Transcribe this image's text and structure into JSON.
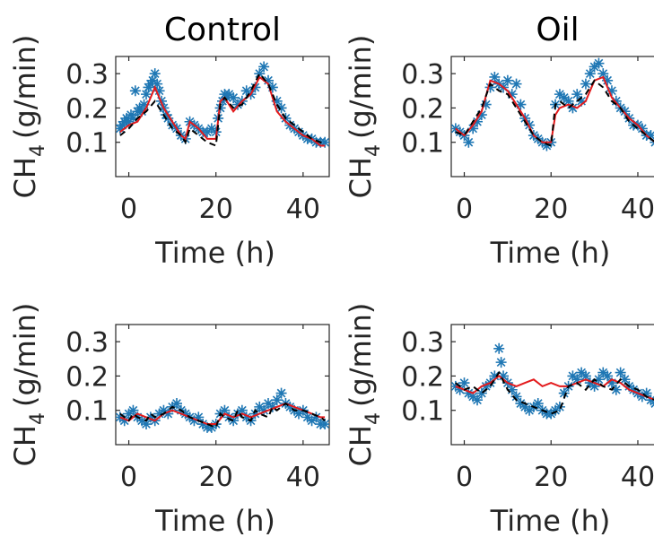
{
  "figure": {
    "titles": [
      "Control",
      "Oil"
    ],
    "colors": {
      "observed": "#1f77b4",
      "model_red": "#e31a1c",
      "model_black": "#000000",
      "axis": "#262626"
    }
  },
  "chart_data": [
    {
      "type": "line",
      "panel": "top-left",
      "title": "Control",
      "xlabel": "Time (h)",
      "ylabel": "CH4 (g/min)",
      "ylabel_main": "CH",
      "ylabel_sub": "4",
      "ylabel_unit": "(g/min)",
      "xlim": [
        -3,
        46
      ],
      "ylim": [
        0,
        0.35
      ],
      "xticks": [
        0,
        20,
        40
      ],
      "yticks": [
        0.1,
        0.2,
        0.3
      ],
      "xtick_labels": [
        "0",
        "20",
        "40"
      ],
      "ytick_labels": [
        "0.1",
        "0.2",
        "0.3"
      ],
      "series": [
        {
          "style": "star",
          "color": "#1f77b4",
          "x": [
            -2,
            -1.5,
            -1,
            -0.5,
            0,
            0.5,
            1,
            1.5,
            2,
            2.5,
            3,
            3.5,
            4,
            4.5,
            5,
            5.5,
            6,
            6.5,
            7,
            7.5,
            8,
            8.5,
            9,
            10,
            11,
            12,
            13,
            14,
            15,
            16,
            17,
            18,
            19,
            20,
            20.5,
            21,
            21.5,
            22,
            22.5,
            23,
            24,
            25,
            26,
            27,
            28,
            29,
            30,
            31,
            32,
            33,
            34,
            35,
            36,
            37,
            38,
            39,
            40,
            41,
            42,
            43,
            44,
            45
          ],
          "y": [
            0.14,
            0.15,
            0.16,
            0.17,
            0.16,
            0.18,
            0.17,
            0.25,
            0.19,
            0.2,
            0.19,
            0.21,
            0.24,
            0.26,
            0.27,
            0.28,
            0.3,
            0.27,
            0.25,
            0.22,
            0.2,
            0.18,
            0.17,
            0.15,
            0.14,
            0.12,
            0.11,
            0.16,
            0.15,
            0.14,
            0.13,
            0.13,
            0.14,
            0.13,
            0.17,
            0.2,
            0.22,
            0.24,
            0.23,
            0.24,
            0.23,
            0.21,
            0.22,
            0.25,
            0.24,
            0.26,
            0.3,
            0.32,
            0.28,
            0.26,
            0.22,
            0.2,
            0.17,
            0.15,
            0.14,
            0.13,
            0.12,
            0.11,
            0.11,
            0.1,
            0.1,
            0.1
          ]
        },
        {
          "style": "solid",
          "color": "#e31a1c",
          "x": [
            -2,
            0,
            2,
            4,
            6,
            8,
            10,
            12,
            13,
            14,
            16,
            18,
            20,
            21,
            22,
            24,
            26,
            28,
            30,
            32,
            34,
            36,
            38,
            40,
            42,
            44,
            45
          ],
          "y": [
            0.13,
            0.15,
            0.16,
            0.2,
            0.26,
            0.2,
            0.16,
            0.12,
            0.11,
            0.16,
            0.14,
            0.11,
            0.11,
            0.22,
            0.23,
            0.19,
            0.22,
            0.24,
            0.29,
            0.27,
            0.19,
            0.16,
            0.14,
            0.12,
            0.11,
            0.09,
            0.09
          ]
        },
        {
          "style": "dashed",
          "color": "#000000",
          "x": [
            -2,
            0,
            2,
            4,
            6,
            8,
            10,
            12,
            13,
            14,
            16,
            18,
            20,
            21,
            22,
            24,
            26,
            28,
            30,
            32,
            34,
            36,
            38,
            40,
            42,
            44,
            45
          ],
          "y": [
            0.12,
            0.14,
            0.17,
            0.19,
            0.22,
            0.18,
            0.14,
            0.12,
            0.1,
            0.14,
            0.12,
            0.1,
            0.09,
            0.21,
            0.23,
            0.2,
            0.21,
            0.25,
            0.3,
            0.27,
            0.21,
            0.17,
            0.15,
            0.13,
            0.11,
            0.1,
            0.09
          ]
        }
      ]
    },
    {
      "type": "line",
      "panel": "top-right",
      "title": "Oil",
      "xlabel": "Time (h)",
      "ylabel": "CH4 (g/min)",
      "ylabel_main": "CH",
      "ylabel_sub": "4",
      "ylabel_unit": "(g/min)",
      "xlim": [
        -3,
        46
      ],
      "ylim": [
        0,
        0.35
      ],
      "xticks": [
        0,
        20,
        40
      ],
      "yticks": [
        0.1,
        0.2,
        0.3
      ],
      "xtick_labels": [
        "0",
        "20",
        "40"
      ],
      "ytick_labels": [
        "0.1",
        "0.2",
        "0.3"
      ],
      "series": [
        {
          "style": "star",
          "color": "#1f77b4",
          "x": [
            -2,
            -1,
            0,
            1,
            2,
            3,
            4,
            5,
            6,
            7,
            8,
            9,
            10,
            11,
            12,
            13,
            14,
            15,
            16,
            17,
            18,
            19,
            20,
            21,
            22,
            23,
            24,
            25,
            26,
            27,
            28,
            29,
            30,
            31,
            32,
            33,
            34,
            35,
            36,
            37,
            38,
            39,
            40,
            41,
            42,
            43,
            44,
            45
          ],
          "y": [
            0.14,
            0.13,
            0.12,
            0.1,
            0.14,
            0.16,
            0.18,
            0.21,
            0.26,
            0.29,
            0.27,
            0.26,
            0.28,
            0.24,
            0.27,
            0.21,
            0.17,
            0.15,
            0.12,
            0.11,
            0.1,
            0.09,
            0.1,
            0.21,
            0.24,
            0.23,
            0.22,
            0.2,
            0.24,
            0.22,
            0.27,
            0.3,
            0.32,
            0.33,
            0.3,
            0.28,
            0.25,
            0.22,
            0.2,
            0.19,
            0.17,
            0.15,
            0.15,
            0.14,
            0.12,
            0.12,
            0.1,
            0.1
          ]
        },
        {
          "style": "solid",
          "color": "#e31a1c",
          "x": [
            -2,
            0,
            2,
            4,
            6,
            8,
            10,
            12,
            14,
            16,
            18,
            20,
            21,
            22,
            24,
            26,
            28,
            30,
            32,
            34,
            36,
            38,
            40,
            42,
            44,
            45
          ],
          "y": [
            0.14,
            0.12,
            0.15,
            0.19,
            0.28,
            0.27,
            0.25,
            0.21,
            0.17,
            0.12,
            0.1,
            0.1,
            0.18,
            0.2,
            0.21,
            0.2,
            0.22,
            0.28,
            0.29,
            0.23,
            0.2,
            0.17,
            0.15,
            0.12,
            0.1,
            0.1
          ]
        },
        {
          "style": "dashed",
          "color": "#000000",
          "x": [
            -2,
            0,
            2,
            4,
            6,
            8,
            10,
            12,
            14,
            16,
            18,
            20,
            21,
            22,
            24,
            26,
            28,
            30,
            32,
            34,
            36,
            38,
            40,
            42,
            44,
            45
          ],
          "y": [
            0.13,
            0.12,
            0.16,
            0.2,
            0.27,
            0.25,
            0.24,
            0.2,
            0.16,
            0.12,
            0.1,
            0.09,
            0.21,
            0.22,
            0.2,
            0.22,
            0.24,
            0.28,
            0.26,
            0.22,
            0.2,
            0.16,
            0.14,
            0.12,
            0.1,
            0.1
          ]
        }
      ]
    },
    {
      "type": "line",
      "panel": "bottom-left",
      "title": "",
      "xlabel": "Time (h)",
      "ylabel": "CH4 (g/min)",
      "ylabel_main": "CH",
      "ylabel_sub": "4",
      "ylabel_unit": "(g/min)",
      "xlim": [
        -3,
        46
      ],
      "ylim": [
        0,
        0.35
      ],
      "xticks": [
        0,
        20,
        40
      ],
      "yticks": [
        0.1,
        0.2,
        0.3
      ],
      "xtick_labels": [
        "0",
        "20",
        "40"
      ],
      "ytick_labels": [
        "0.1",
        "0.2",
        "0.3"
      ],
      "series": [
        {
          "style": "star",
          "color": "#1f77b4",
          "x": [
            -2,
            -1,
            0,
            1,
            2,
            3,
            4,
            5,
            6,
            7,
            8,
            9,
            10,
            11,
            12,
            13,
            14,
            15,
            16,
            17,
            18,
            19,
            20,
            21,
            22,
            23,
            24,
            25,
            26,
            27,
            28,
            29,
            30,
            31,
            32,
            33,
            34,
            35,
            36,
            37,
            38,
            39,
            40,
            41,
            42,
            43,
            44,
            45
          ],
          "y": [
            0.08,
            0.07,
            0.09,
            0.1,
            0.08,
            0.07,
            0.06,
            0.08,
            0.07,
            0.09,
            0.1,
            0.09,
            0.11,
            0.12,
            0.1,
            0.09,
            0.08,
            0.07,
            0.08,
            0.06,
            0.05,
            0.05,
            0.06,
            0.09,
            0.1,
            0.08,
            0.07,
            0.09,
            0.1,
            0.08,
            0.07,
            0.09,
            0.11,
            0.1,
            0.12,
            0.11,
            0.13,
            0.15,
            0.12,
            0.11,
            0.1,
            0.09,
            0.1,
            0.08,
            0.07,
            0.08,
            0.06,
            0.06
          ]
        },
        {
          "style": "solid",
          "color": "#e31a1c",
          "x": [
            -2,
            0,
            2,
            4,
            6,
            8,
            10,
            12,
            14,
            16,
            18,
            20,
            22,
            24,
            26,
            28,
            30,
            32,
            34,
            36,
            38,
            40,
            42,
            44,
            45
          ],
          "y": [
            0.08,
            0.07,
            0.09,
            0.08,
            0.07,
            0.09,
            0.1,
            0.09,
            0.08,
            0.07,
            0.06,
            0.06,
            0.09,
            0.08,
            0.09,
            0.08,
            0.09,
            0.1,
            0.11,
            0.12,
            0.11,
            0.1,
            0.09,
            0.08,
            0.08
          ]
        },
        {
          "style": "dashed",
          "color": "#000000",
          "x": [
            -2,
            0,
            1,
            2,
            4,
            5,
            6,
            8,
            10,
            12,
            14,
            16,
            18,
            20,
            21,
            22,
            24,
            25,
            26,
            28,
            29,
            30,
            32,
            33,
            34,
            36,
            38,
            40,
            42,
            44,
            45
          ],
          "y": [
            0.09,
            0.07,
            0.09,
            0.08,
            0.07,
            0.09,
            0.08,
            0.09,
            0.11,
            0.1,
            0.08,
            0.07,
            0.06,
            0.05,
            0.09,
            0.08,
            0.07,
            0.1,
            0.08,
            0.07,
            0.1,
            0.09,
            0.08,
            0.11,
            0.1,
            0.12,
            0.1,
            0.1,
            0.09,
            0.08,
            0.07
          ]
        }
      ]
    },
    {
      "type": "line",
      "panel": "bottom-right",
      "title": "",
      "xlabel": "Time (h)",
      "ylabel": "CH4 (g/min)",
      "ylabel_main": "CH",
      "ylabel_sub": "4",
      "ylabel_unit": "(g/min)",
      "xlim": [
        -3,
        46
      ],
      "ylim": [
        0,
        0.35
      ],
      "xticks": [
        0,
        20,
        40
      ],
      "yticks": [
        0.1,
        0.2,
        0.3
      ],
      "xtick_labels": [
        "0",
        "20",
        "40"
      ],
      "ytick_labels": [
        "0.1",
        "0.2",
        "0.3"
      ],
      "series": [
        {
          "style": "star",
          "color": "#1f77b4",
          "x": [
            -2,
            -1,
            0,
            1,
            2,
            3,
            4,
            5,
            6,
            7,
            8,
            8.5,
            9,
            10,
            11,
            12,
            13,
            14,
            15,
            16,
            17,
            18,
            19,
            20,
            21,
            22,
            23,
            24,
            25,
            26,
            27,
            28,
            29,
            30,
            31,
            32,
            33,
            34,
            35,
            36,
            37,
            38,
            39,
            40,
            41,
            42,
            43,
            44,
            45
          ],
          "y": [
            0.17,
            0.16,
            0.18,
            0.15,
            0.14,
            0.13,
            0.15,
            0.17,
            0.18,
            0.2,
            0.28,
            0.24,
            0.2,
            0.18,
            0.16,
            0.14,
            0.12,
            0.11,
            0.1,
            0.11,
            0.12,
            0.1,
            0.09,
            0.09,
            0.1,
            0.11,
            0.15,
            0.17,
            0.2,
            0.19,
            0.21,
            0.2,
            0.18,
            0.17,
            0.19,
            0.21,
            0.2,
            0.18,
            0.16,
            0.21,
            0.19,
            0.17,
            0.16,
            0.15,
            0.14,
            0.15,
            0.13,
            0.12,
            0.13
          ]
        },
        {
          "style": "solid",
          "color": "#e31a1c",
          "x": [
            -2,
            0,
            2,
            4,
            6,
            8,
            10,
            12,
            14,
            16,
            18,
            20,
            22,
            24,
            26,
            28,
            30,
            32,
            34,
            36,
            38,
            40,
            42,
            44,
            45
          ],
          "y": [
            0.17,
            0.16,
            0.15,
            0.17,
            0.18,
            0.2,
            0.18,
            0.17,
            0.18,
            0.19,
            0.17,
            0.18,
            0.17,
            0.17,
            0.18,
            0.19,
            0.18,
            0.17,
            0.19,
            0.18,
            0.16,
            0.15,
            0.14,
            0.13,
            0.13
          ]
        },
        {
          "style": "dashed",
          "color": "#000000",
          "x": [
            -2,
            0,
            2,
            4,
            6,
            8,
            10,
            12,
            14,
            16,
            18,
            20,
            22,
            24,
            26,
            28,
            30,
            32,
            34,
            36,
            38,
            40,
            42,
            44,
            45
          ],
          "y": [
            0.18,
            0.16,
            0.17,
            0.15,
            0.17,
            0.21,
            0.16,
            0.13,
            0.12,
            0.11,
            0.1,
            0.09,
            0.1,
            0.17,
            0.18,
            0.16,
            0.19,
            0.17,
            0.16,
            0.19,
            0.17,
            0.16,
            0.14,
            0.13,
            0.12
          ]
        }
      ]
    }
  ]
}
